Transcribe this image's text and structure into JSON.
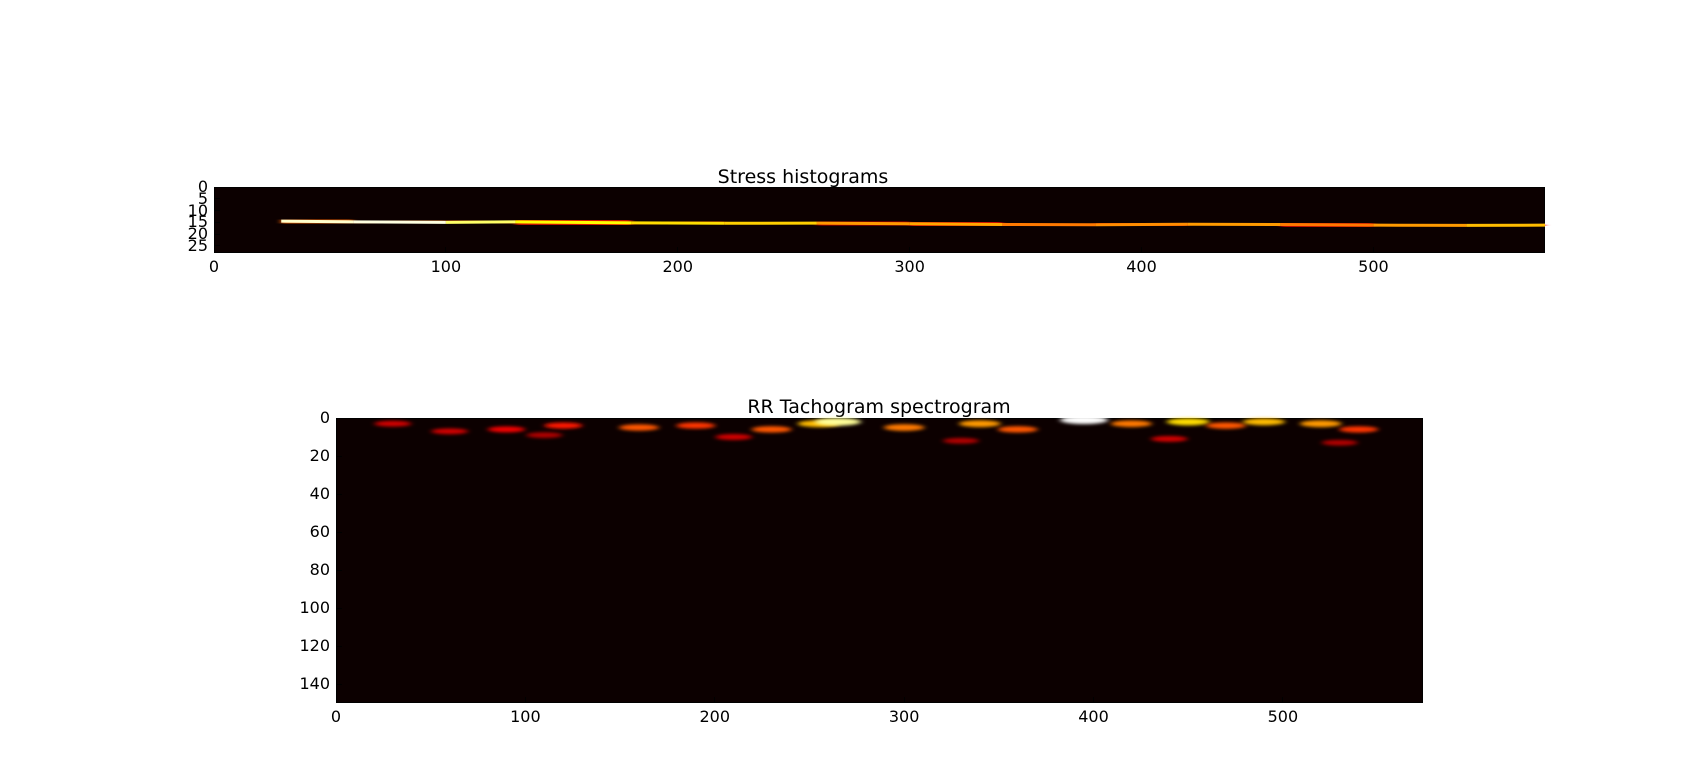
{
  "chart_data": [
    {
      "type": "heatmap",
      "title": "Stress histograms",
      "colormap": "hot",
      "background_color": "#0c0000",
      "xlim": [
        0,
        574
      ],
      "ylim": [
        28,
        0
      ],
      "xticks": [
        0,
        100,
        200,
        300,
        400,
        500
      ],
      "yticks": [
        0,
        5,
        10,
        15,
        20,
        25
      ],
      "ridge": {
        "x": [
          29,
          60,
          100,
          130,
          180,
          220,
          260,
          300,
          340,
          380,
          420,
          460,
          500,
          540,
          574
        ],
        "y": [
          14.5,
          14.8,
          15.0,
          14.8,
          15.2,
          15.4,
          15.3,
          15.6,
          15.9,
          16.0,
          15.8,
          15.9,
          16.2,
          16.3,
          16.2
        ],
        "intensity": [
          0.95,
          0.97,
          0.85,
          0.75,
          0.7,
          0.68,
          0.6,
          0.62,
          0.55,
          0.58,
          0.6,
          0.55,
          0.6,
          0.65,
          0.8
        ]
      }
    },
    {
      "type": "heatmap",
      "title": "RR Tachogram spectrogram",
      "colormap": "hot",
      "background_color": "#0c0000",
      "xlim": [
        0,
        574
      ],
      "ylim": [
        150,
        0
      ],
      "xticks": [
        0,
        100,
        200,
        300,
        400,
        500
      ],
      "yticks": [
        0,
        20,
        40,
        60,
        80,
        100,
        120,
        140
      ],
      "hotspots": [
        {
          "x": 30,
          "y": 3,
          "i": 0.3
        },
        {
          "x": 60,
          "y": 7,
          "i": 0.3
        },
        {
          "x": 90,
          "y": 6,
          "i": 0.35
        },
        {
          "x": 120,
          "y": 4,
          "i": 0.4
        },
        {
          "x": 160,
          "y": 5,
          "i": 0.5
        },
        {
          "x": 190,
          "y": 4,
          "i": 0.45
        },
        {
          "x": 230,
          "y": 6,
          "i": 0.5
        },
        {
          "x": 255,
          "y": 3,
          "i": 0.65
        },
        {
          "x": 265,
          "y": 2,
          "i": 0.9
        },
        {
          "x": 300,
          "y": 5,
          "i": 0.55
        },
        {
          "x": 340,
          "y": 3,
          "i": 0.6
        },
        {
          "x": 360,
          "y": 6,
          "i": 0.5
        },
        {
          "x": 395,
          "y": 1,
          "i": 1.0
        },
        {
          "x": 420,
          "y": 3,
          "i": 0.55
        },
        {
          "x": 450,
          "y": 2,
          "i": 0.7
        },
        {
          "x": 470,
          "y": 4,
          "i": 0.5
        },
        {
          "x": 490,
          "y": 2,
          "i": 0.65
        },
        {
          "x": 520,
          "y": 3,
          "i": 0.6
        },
        {
          "x": 540,
          "y": 6,
          "i": 0.45
        },
        {
          "x": 110,
          "y": 9,
          "i": 0.25
        },
        {
          "x": 210,
          "y": 10,
          "i": 0.3
        },
        {
          "x": 330,
          "y": 12,
          "i": 0.25
        },
        {
          "x": 440,
          "y": 11,
          "i": 0.3
        },
        {
          "x": 530,
          "y": 13,
          "i": 0.25
        }
      ]
    }
  ]
}
